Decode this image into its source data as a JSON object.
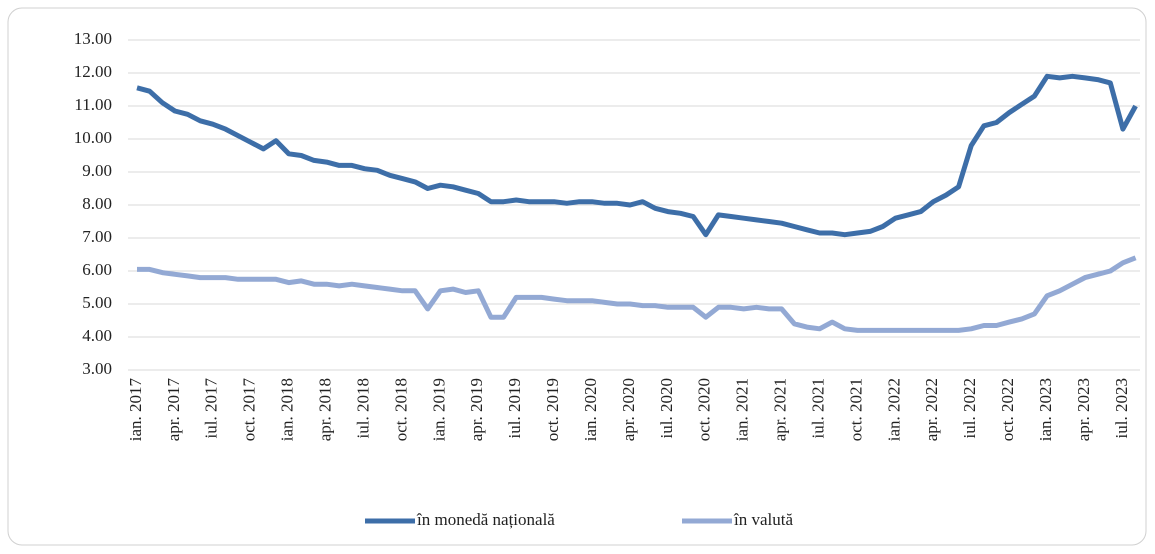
{
  "chart_data": {
    "type": "line",
    "categories": [
      "ian. 2017",
      null,
      null,
      "apr. 2017",
      null,
      null,
      "iul. 2017",
      null,
      null,
      "oct. 2017",
      null,
      null,
      "ian. 2018",
      null,
      null,
      "apr. 2018",
      null,
      null,
      "iul. 2018",
      null,
      null,
      "oct. 2018",
      null,
      null,
      "ian. 2019",
      null,
      null,
      "apr. 2019",
      null,
      null,
      "iul. 2019",
      null,
      null,
      "oct. 2019",
      null,
      null,
      "ian. 2020",
      null,
      null,
      "apr. 2020",
      null,
      null,
      "iul. 2020",
      null,
      null,
      "oct. 2020",
      null,
      null,
      "ian. 2021",
      null,
      null,
      "apr. 2021",
      null,
      null,
      "iul. 2021",
      null,
      null,
      "oct. 2021",
      null,
      null,
      "ian. 2022",
      null,
      null,
      "apr. 2022",
      null,
      null,
      "iul. 2022",
      null,
      null,
      "oct. 2022",
      null,
      null,
      "ian. 2023",
      null,
      null,
      "apr. 2023",
      null,
      null,
      "iul. 2023",
      null
    ],
    "series": [
      {
        "name": "în monedă națională",
        "color": "#3d6ea8",
        "values": [
          11.55,
          11.45,
          11.1,
          10.85,
          10.75,
          10.55,
          10.45,
          10.3,
          10.1,
          9.9,
          9.7,
          9.95,
          9.55,
          9.5,
          9.35,
          9.3,
          9.2,
          9.2,
          9.1,
          9.05,
          8.9,
          8.8,
          8.7,
          8.5,
          8.6,
          8.55,
          8.45,
          8.35,
          8.1,
          8.1,
          8.15,
          8.1,
          8.1,
          8.1,
          8.05,
          8.1,
          8.1,
          8.05,
          8.05,
          8.0,
          8.1,
          7.9,
          7.8,
          7.75,
          7.65,
          7.1,
          7.7,
          7.65,
          7.6,
          7.55,
          7.5,
          7.45,
          7.35,
          7.25,
          7.15,
          7.15,
          7.1,
          7.15,
          7.2,
          7.35,
          7.6,
          7.7,
          7.8,
          8.1,
          8.3,
          8.55,
          9.8,
          10.4,
          10.5,
          10.8,
          11.05,
          11.3,
          11.9,
          11.85,
          11.9,
          11.85,
          11.8,
          11.7,
          10.3,
          11.0
        ]
      },
      {
        "name": "în valută",
        "color": "#93a9d4",
        "values": [
          6.05,
          6.05,
          5.95,
          5.9,
          5.85,
          5.8,
          5.8,
          5.8,
          5.75,
          5.75,
          5.75,
          5.75,
          5.65,
          5.7,
          5.6,
          5.6,
          5.55,
          5.6,
          5.55,
          5.5,
          5.45,
          5.4,
          5.4,
          4.85,
          5.4,
          5.45,
          5.35,
          5.4,
          4.6,
          4.6,
          5.2,
          5.2,
          5.2,
          5.15,
          5.1,
          5.1,
          5.1,
          5.05,
          5.0,
          5.0,
          4.95,
          4.95,
          4.9,
          4.9,
          4.9,
          4.6,
          4.9,
          4.9,
          4.85,
          4.9,
          4.85,
          4.85,
          4.4,
          4.3,
          4.25,
          4.45,
          4.25,
          4.2,
          4.2,
          4.2,
          4.2,
          4.2,
          4.2,
          4.2,
          4.2,
          4.2,
          4.25,
          4.35,
          4.35,
          4.45,
          4.55,
          4.7,
          5.25,
          5.4,
          5.6,
          5.8,
          5.9,
          6.0,
          6.25,
          6.4
        ]
      }
    ],
    "ylim": [
      3,
      13
    ],
    "yticks": [
      {
        "value": 3,
        "label": "3.00"
      },
      {
        "value": 4,
        "label": "4.00"
      },
      {
        "value": 5,
        "label": "5.00"
      },
      {
        "value": 6,
        "label": "6.00"
      },
      {
        "value": 7,
        "label": "7.00"
      },
      {
        "value": 8,
        "label": "8.00"
      },
      {
        "value": 9,
        "label": "9.00"
      },
      {
        "value": 10,
        "label": "10.00"
      },
      {
        "value": 11,
        "label": "11.00"
      },
      {
        "value": 12,
        "label": "12.00"
      },
      {
        "value": 13,
        "label": "13.00"
      }
    ],
    "grid": true,
    "legend": "bottom"
  }
}
